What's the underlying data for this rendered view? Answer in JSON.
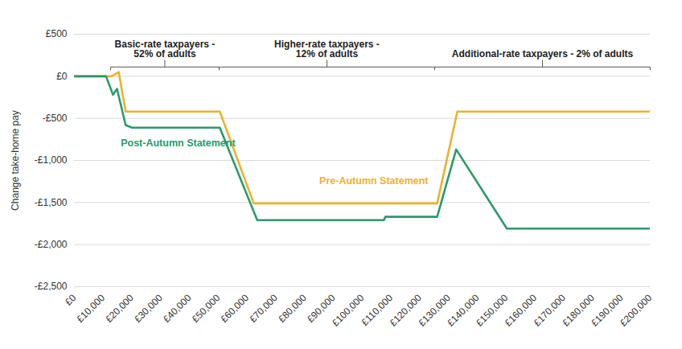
{
  "chart_data": {
    "type": "line",
    "y_label": "Change take-home pay",
    "xlim": [
      0,
      200000
    ],
    "xticks": [
      {
        "value": 0,
        "label": "£0"
      },
      {
        "value": 10000,
        "label": "£10,000"
      },
      {
        "value": 20000,
        "label": "£20,000"
      },
      {
        "value": 30000,
        "label": "£30,000"
      },
      {
        "value": 40000,
        "label": "£40,000"
      },
      {
        "value": 50000,
        "label": "£50,000"
      },
      {
        "value": 60000,
        "label": "£60,000"
      },
      {
        "value": 70000,
        "label": "£70,000"
      },
      {
        "value": 80000,
        "label": "£80,000"
      },
      {
        "value": 90000,
        "label": "£90,000"
      },
      {
        "value": 100000,
        "label": "£100,000"
      },
      {
        "value": 110000,
        "label": "£110,000"
      },
      {
        "value": 120000,
        "label": "£120,000"
      },
      {
        "value": 130000,
        "label": "£130,000"
      },
      {
        "value": 140000,
        "label": "£140,000"
      },
      {
        "value": 150000,
        "label": "£150,000"
      },
      {
        "value": 160000,
        "label": "£160,000"
      },
      {
        "value": 170000,
        "label": "£170,000"
      },
      {
        "value": 180000,
        "label": "£180,000"
      },
      {
        "value": 190000,
        "label": "£190,000"
      },
      {
        "value": 200000,
        "label": "£200,000"
      }
    ],
    "ylim": [
      -2500,
      500
    ],
    "yticks": [
      {
        "value": 500,
        "label": "£500"
      },
      {
        "value": 0,
        "label": "£0"
      },
      {
        "value": -500,
        "label": "-£500"
      },
      {
        "value": -1000,
        "label": "-£1,000"
      },
      {
        "value": -1500,
        "label": "-£1,500"
      },
      {
        "value": -2000,
        "label": "-£2,000"
      },
      {
        "value": -2500,
        "label": "-£2,500"
      }
    ],
    "grid": true,
    "series": [
      {
        "name": "Pre-Autumn Statement",
        "color": "#ecb22e",
        "x": [
          0,
          13000,
          15400,
          17800,
          50500,
          62300,
          126000,
          133000,
          200000
        ],
        "values": [
          0,
          0,
          50,
          -420,
          -420,
          -1510,
          -1510,
          -420,
          -420
        ]
      },
      {
        "name": "Post-Autumn Statement",
        "color": "#2a9a6c",
        "x": [
          0,
          11000,
          13400,
          14800,
          17800,
          20000,
          50500,
          63500,
          107500,
          108000,
          126000,
          132600,
          150200,
          200000
        ],
        "values": [
          0,
          0,
          -220,
          -150,
          -580,
          -610,
          -610,
          -1710,
          -1710,
          -1670,
          -1670,
          -870,
          -1810,
          -1810
        ]
      }
    ],
    "annotations": [
      {
        "text": "Basic-rate taxpayers -\n52% of adults",
        "range": [
          12570,
          50270
        ]
      },
      {
        "text": "Higher-rate taxpayers -\n12% of adults",
        "range": [
          50270,
          125140
        ]
      },
      {
        "text": "Additional-rate taxpayers - 2% of adults",
        "range": [
          125140,
          200000
        ]
      }
    ]
  }
}
